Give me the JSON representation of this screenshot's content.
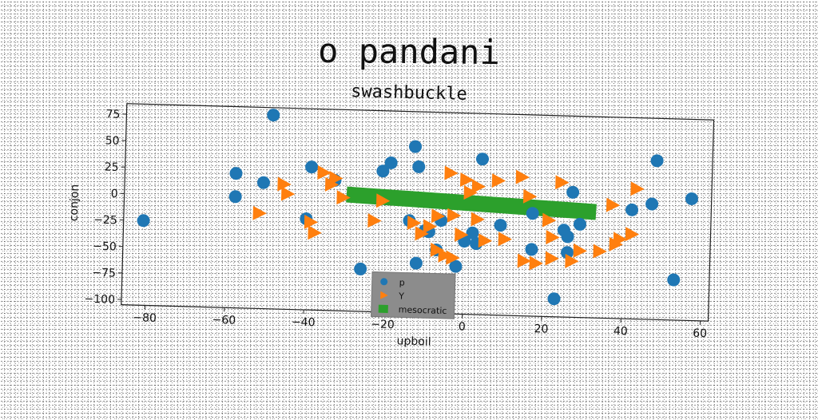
{
  "title": "o pandani",
  "chart_data": {
    "type": "scatter",
    "subtitle": "swashbuckle",
    "xlabel": "upboil",
    "ylabel": "conjon",
    "xlim": [
      -86,
      62
    ],
    "ylim": [
      -105,
      85
    ],
    "xticks": [
      -80,
      -60,
      -40,
      -20,
      0,
      20,
      40,
      60
    ],
    "yticks": [
      -100,
      -75,
      -50,
      -25,
      0,
      25,
      50,
      75
    ],
    "grid": false,
    "legend_position": "lower-center",
    "series": [
      {
        "name": "p",
        "marker": "circle",
        "color": "#1f77b4",
        "points": [
          [
            -81,
            -25
          ],
          [
            -49,
            78
          ],
          [
            -58,
            22
          ],
          [
            -58,
            0
          ],
          [
            -51,
            14
          ],
          [
            -39,
            30
          ],
          [
            -40,
            -19
          ],
          [
            -33,
            18
          ],
          [
            -26,
            -65
          ],
          [
            -21,
            28
          ],
          [
            -19,
            36
          ],
          [
            -13,
            52
          ],
          [
            -12,
            33
          ],
          [
            -14,
            -18
          ],
          [
            -10,
            -27
          ],
          [
            -7,
            -45
          ],
          [
            -9,
            -28
          ],
          [
            -6,
            -17
          ],
          [
            -12,
            -58
          ],
          [
            -2,
            -60
          ],
          [
            0,
            -36
          ],
          [
            2,
            -28
          ],
          [
            3,
            -38
          ],
          [
            4,
            42
          ],
          [
            9,
            -20
          ],
          [
            17,
            -8
          ],
          [
            17,
            -42
          ],
          [
            23,
            -88
          ],
          [
            25,
            -23
          ],
          [
            26,
            -44
          ],
          [
            26,
            -29
          ],
          [
            27,
            13
          ],
          [
            29,
            -17
          ],
          [
            42,
            -2
          ],
          [
            47,
            4
          ],
          [
            48,
            45
          ],
          [
            53,
            -67
          ],
          [
            57,
            10
          ]
        ]
      },
      {
        "name": "Y",
        "marker": "triangle-right",
        "color": "#ff7f0e",
        "points": [
          [
            -52,
            -15
          ],
          [
            -45,
            4
          ],
          [
            -46,
            13
          ],
          [
            -36,
            25
          ],
          [
            -39,
            -22
          ],
          [
            -38,
            -32
          ],
          [
            -33,
            20
          ],
          [
            -34,
            14
          ],
          [
            -31,
            2
          ],
          [
            -23,
            -19
          ],
          [
            -21,
            0
          ],
          [
            -13,
            -20
          ],
          [
            -11,
            -30
          ],
          [
            -9,
            -23
          ],
          [
            -7,
            -13
          ],
          [
            -7,
            -45
          ],
          [
            -5,
            -50
          ],
          [
            -3,
            -12
          ],
          [
            -3,
            -52
          ],
          [
            -1,
            -30
          ],
          [
            -4,
            28
          ],
          [
            0,
            22
          ],
          [
            1,
            10
          ],
          [
            3,
            16
          ],
          [
            3,
            -15
          ],
          [
            5,
            -35
          ],
          [
            8,
            22
          ],
          [
            10,
            -33
          ],
          [
            14,
            26
          ],
          [
            16,
            8
          ],
          [
            15,
            -53
          ],
          [
            18,
            -55
          ],
          [
            21,
            -14
          ],
          [
            22,
            -30
          ],
          [
            22,
            -50
          ],
          [
            24,
            22
          ],
          [
            27,
            -52
          ],
          [
            29,
            -42
          ],
          [
            34,
            -42
          ],
          [
            37,
            2
          ],
          [
            38,
            -35
          ],
          [
            39,
            -30
          ],
          [
            42,
            -25
          ],
          [
            43,
            18
          ]
        ]
      },
      {
        "name": "mesocratic",
        "marker": "line",
        "color": "#2ca02c",
        "points": [
          [
            -30,
            5
          ],
          [
            33,
            -5
          ]
        ]
      }
    ]
  }
}
